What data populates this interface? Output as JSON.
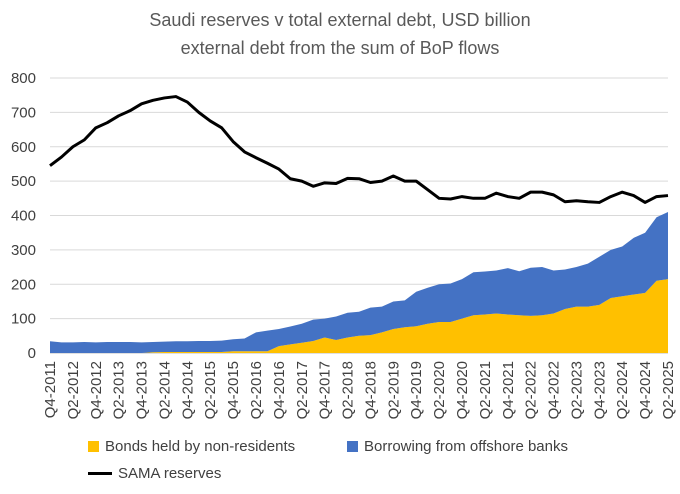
{
  "chart_data": {
    "type": "area",
    "title": "Saudi reserves v total external debt, USD billion",
    "subtitle": "external debt from the sum of BoP flows",
    "ylim": [
      0,
      800
    ],
    "yticks": [
      0,
      100,
      200,
      300,
      400,
      500,
      600,
      700,
      800
    ],
    "xtick_labels": [
      "Q4-2011",
      "Q2-2012",
      "Q4-2012",
      "Q2-2013",
      "Q4-2013",
      "Q2-2014",
      "Q4-2014",
      "Q2-2015",
      "Q4-2015",
      "Q2-2016",
      "Q4-2016",
      "Q2-2017",
      "Q4-2017",
      "Q2-2018",
      "Q4-2018",
      "Q2-2019",
      "Q4-2019",
      "Q2-2020",
      "Q4-2020",
      "Q2-2021",
      "Q4-2021",
      "Q2-2022",
      "Q4-2022",
      "Q2-2023",
      "Q4-2023",
      "Q2-2024",
      "Q4-2024",
      "Q2-2025"
    ],
    "categories": [
      "Q4-2011",
      "Q1-2012",
      "Q2-2012",
      "Q3-2012",
      "Q4-2012",
      "Q1-2013",
      "Q2-2013",
      "Q3-2013",
      "Q4-2013",
      "Q1-2014",
      "Q2-2014",
      "Q3-2014",
      "Q4-2014",
      "Q1-2015",
      "Q2-2015",
      "Q3-2015",
      "Q4-2015",
      "Q1-2016",
      "Q2-2016",
      "Q3-2016",
      "Q4-2016",
      "Q1-2017",
      "Q2-2017",
      "Q3-2017",
      "Q4-2017",
      "Q1-2018",
      "Q2-2018",
      "Q3-2018",
      "Q4-2018",
      "Q1-2019",
      "Q2-2019",
      "Q3-2019",
      "Q4-2019",
      "Q1-2020",
      "Q2-2020",
      "Q3-2020",
      "Q4-2020",
      "Q1-2021",
      "Q2-2021",
      "Q3-2021",
      "Q4-2021",
      "Q1-2022",
      "Q2-2022",
      "Q3-2022",
      "Q4-2022",
      "Q1-2023",
      "Q2-2023",
      "Q3-2023",
      "Q4-2023",
      "Q1-2024",
      "Q2-2024",
      "Q3-2024",
      "Q4-2024",
      "Q1-2025",
      "Q2-2025"
    ],
    "series": [
      {
        "name": "Bonds held by non-residents",
        "kind": "stacked-area",
        "color": "#ffc000",
        "values": [
          0,
          0,
          0,
          0,
          0,
          0,
          0,
          0,
          0,
          2,
          3,
          3,
          3,
          3,
          3,
          3,
          5,
          5,
          5,
          5,
          20,
          25,
          30,
          35,
          45,
          38,
          45,
          50,
          52,
          60,
          70,
          75,
          78,
          85,
          90,
          90,
          100,
          110,
          112,
          115,
          112,
          110,
          108,
          110,
          115,
          128,
          135,
          135,
          140,
          160,
          165,
          170,
          175,
          210,
          215
        ]
      },
      {
        "name": "Borrowing from offshore banks",
        "kind": "stacked-area",
        "color": "#4472c4",
        "values": [
          34,
          31,
          31,
          32,
          31,
          32,
          32,
          32,
          31,
          30,
          30,
          31,
          31,
          32,
          32,
          33,
          35,
          37,
          55,
          60,
          50,
          52,
          55,
          62,
          55,
          68,
          72,
          70,
          80,
          75,
          80,
          78,
          100,
          105,
          110,
          112,
          115,
          125,
          125,
          125,
          135,
          128,
          140,
          140,
          125,
          115,
          115,
          125,
          140,
          140,
          145,
          165,
          175,
          185,
          195
        ]
      },
      {
        "name": "SAMA reserves",
        "kind": "line",
        "color": "#000000",
        "values": [
          545,
          570,
          600,
          620,
          655,
          670,
          690,
          705,
          725,
          735,
          742,
          746,
          730,
          700,
          675,
          655,
          615,
          585,
          568,
          552,
          535,
          507,
          500,
          485,
          495,
          493,
          508,
          507,
          496,
          500,
          515,
          500,
          500,
          475,
          450,
          448,
          455,
          450,
          450,
          465,
          455,
          450,
          468,
          468,
          460,
          440,
          443,
          440,
          438,
          455,
          468,
          458,
          438,
          455,
          458
        ]
      }
    ],
    "legend": [
      "Bonds held by non-residents",
      "Borrowing from offshore banks",
      "SAMA reserves"
    ],
    "legend_position": "bottom"
  }
}
